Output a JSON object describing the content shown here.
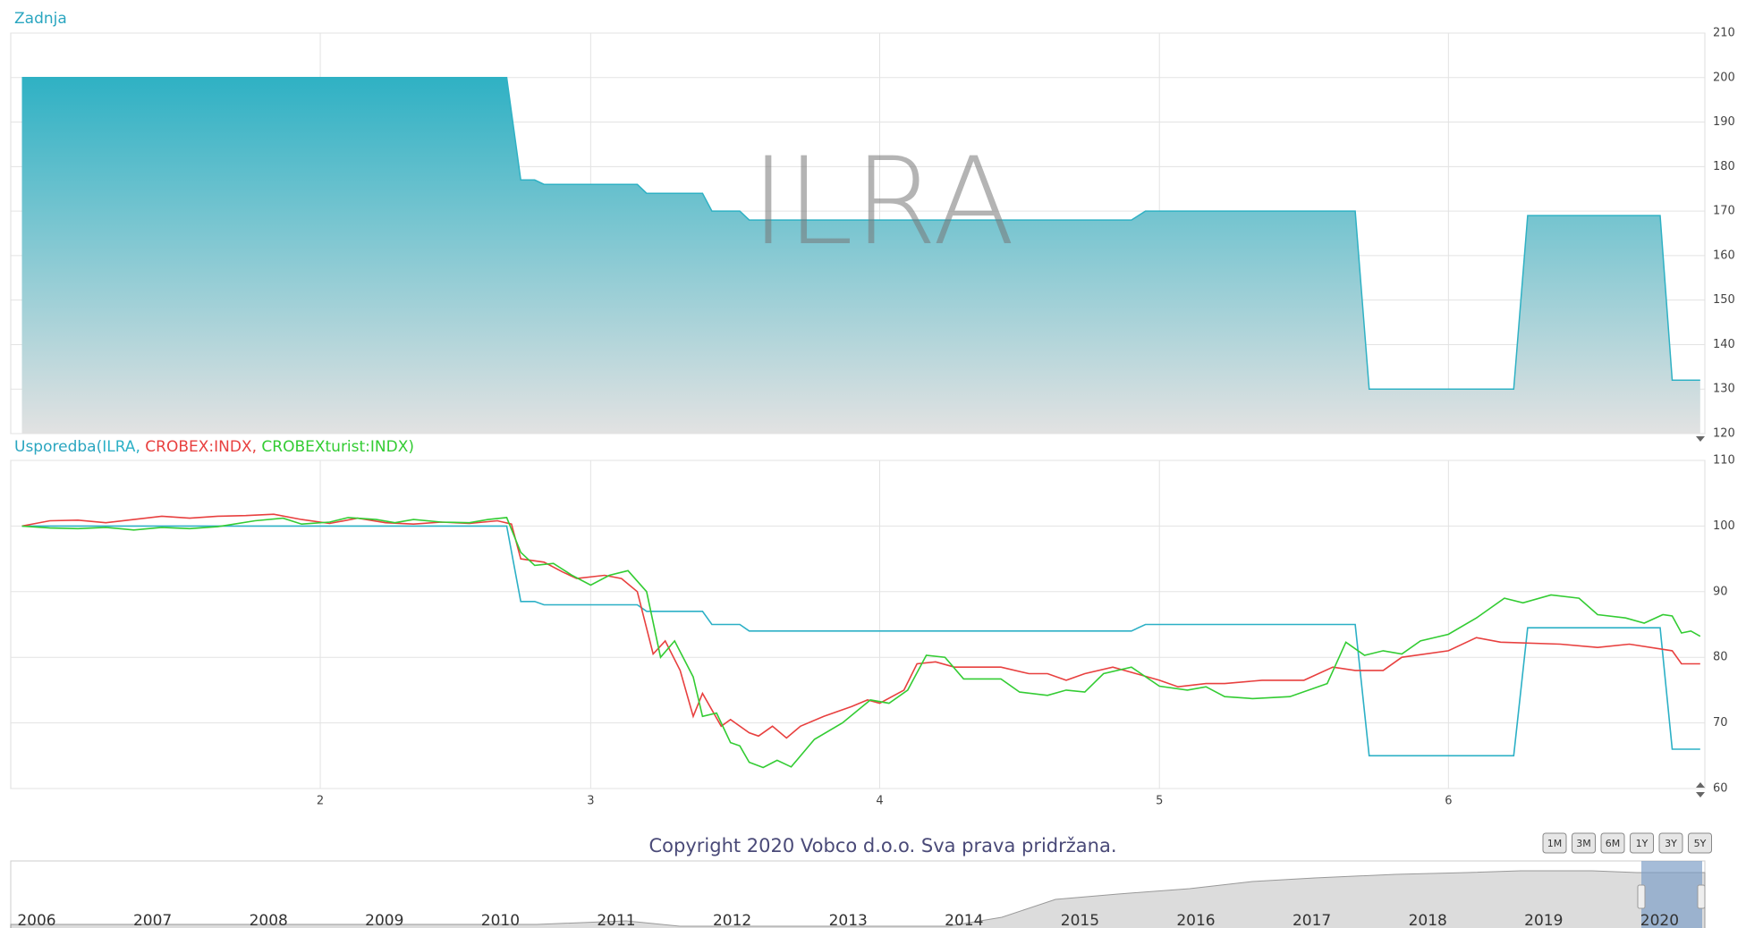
{
  "chart_data": [
    {
      "type": "area",
      "title": "Zadnja",
      "watermark": "ILRA",
      "color": "#2fb1c4",
      "x": [
        0,
        52,
        53.5,
        55,
        56,
        66,
        67,
        73,
        74,
        77,
        78,
        119,
        120.5,
        143,
        144.5,
        160,
        161.5,
        175.7,
        177,
        180
      ],
      "values": [
        200,
        200,
        177,
        177,
        176,
        176,
        174,
        174,
        170,
        170,
        168,
        168,
        170,
        170,
        130,
        130,
        169,
        169,
        132,
        132
      ],
      "xlim": [
        -1.2,
        180.5
      ],
      "xticks": [
        32,
        61,
        92,
        122,
        153
      ],
      "ylim": [
        120,
        210
      ],
      "yticks": [
        120,
        130,
        140,
        150,
        160,
        170,
        180,
        190,
        200,
        210
      ],
      "grid": true
    },
    {
      "type": "line",
      "legend_prefix": "Usporedba(",
      "legend_separator": ", ",
      "legend_suffix": ")",
      "series": [
        {
          "name": "ILRA",
          "color": "#2cb0c6",
          "x": [
            0,
            52,
            53.5,
            55,
            56,
            66,
            67,
            73,
            74,
            77,
            78,
            119,
            120.5,
            143,
            144.5,
            160,
            161.5,
            175.7,
            177,
            180
          ],
          "values": [
            100,
            100,
            88.5,
            88.5,
            88,
            88,
            87,
            87,
            85,
            85,
            84,
            84,
            85,
            85,
            65,
            65,
            84.5,
            84.5,
            66,
            66
          ]
        },
        {
          "name": "CROBEX:INDX",
          "color": "#e8403f",
          "x": [
            0,
            3,
            6,
            9,
            12,
            15,
            18,
            21,
            24,
            27,
            30,
            33,
            36,
            39,
            42,
            45,
            48,
            51,
            52.5,
            53.5,
            56,
            58,
            59.5,
            62.5,
            64.3,
            66,
            67.7,
            69,
            70.6,
            72,
            73,
            75,
            76,
            78,
            79,
            80.5,
            82,
            83.5,
            86,
            89,
            90.7,
            92,
            94.6,
            96,
            98,
            100,
            105,
            108,
            110,
            112,
            114,
            117,
            119.5,
            122,
            124,
            127,
            129,
            133,
            137.5,
            140.6,
            143,
            146,
            148,
            153,
            156,
            158.6,
            165,
            169,
            172.4,
            177,
            178,
            180
          ],
          "values": [
            100,
            100.8,
            100.9,
            100.5,
            101,
            101.5,
            101.2,
            101.5,
            101.6,
            101.8,
            101,
            100.4,
            101.2,
            100.5,
            100.3,
            100.6,
            100.4,
            100.8,
            100.3,
            95,
            94.5,
            93,
            92,
            92.5,
            92,
            90,
            80.5,
            82.5,
            78,
            71,
            74.5,
            69.5,
            70.5,
            68.5,
            68,
            69.5,
            67.7,
            69.5,
            71,
            72.5,
            73.5,
            73,
            75,
            79,
            79.3,
            78.5,
            78.5,
            77.5,
            77.5,
            76.5,
            77.5,
            78.5,
            77.5,
            76.5,
            75.5,
            76,
            76,
            76.5,
            76.5,
            78.5,
            78,
            78,
            80,
            81,
            83,
            82.3,
            82,
            81.5,
            82,
            81,
            79,
            79
          ]
        },
        {
          "name": "CROBEXturist:INDX",
          "color": "#33cc33",
          "x": [
            0,
            3,
            6,
            9,
            12,
            15,
            18,
            21,
            25,
            28,
            30,
            33,
            35,
            38,
            40,
            42,
            45,
            48,
            50,
            52,
            53.5,
            55,
            57,
            59,
            61,
            63,
            65,
            67,
            68.5,
            70,
            72,
            73,
            74.5,
            76,
            77,
            78,
            79.5,
            81,
            82.5,
            85,
            88,
            91,
            93,
            95,
            97,
            99,
            101,
            105,
            107,
            110,
            112,
            114,
            116,
            119,
            122,
            125,
            127,
            129,
            132,
            136,
            140,
            142,
            144,
            146,
            148,
            150,
            153,
            156,
            159,
            161,
            164,
            167,
            169,
            172,
            174,
            176,
            177,
            178,
            179,
            180
          ],
          "values": [
            100,
            99.7,
            99.6,
            99.8,
            99.4,
            99.8,
            99.6,
            99.9,
            100.8,
            101.2,
            100.3,
            100.6,
            101.3,
            101,
            100.5,
            101,
            100.6,
            100.5,
            101,
            101.3,
            96,
            94,
            94.3,
            92.5,
            91,
            92.5,
            93.2,
            90,
            80,
            82.5,
            77,
            71,
            71.5,
            67,
            66.5,
            64,
            63.2,
            64.3,
            63.3,
            67.5,
            70,
            73.5,
            73,
            75,
            80.3,
            80,
            76.7,
            76.7,
            74.7,
            74.2,
            75,
            74.7,
            77.5,
            78.5,
            75.6,
            75,
            75.5,
            74,
            73.7,
            74,
            76,
            82.3,
            80.3,
            81,
            80.5,
            82.5,
            83.5,
            86,
            89,
            88.3,
            89.5,
            89,
            86.5,
            86,
            85.2,
            86.5,
            86.3,
            83.7,
            84,
            83.2
          ]
        }
      ],
      "xlim": [
        -1.2,
        180.5
      ],
      "xticks": [
        {
          "value": 32,
          "label": "2"
        },
        {
          "value": 61,
          "label": "3"
        },
        {
          "value": 92,
          "label": "4"
        },
        {
          "value": 122,
          "label": "5"
        },
        {
          "value": 153,
          "label": "6"
        }
      ],
      "ylim": [
        60,
        110
      ],
      "yticks": [
        60,
        70,
        80,
        90,
        100,
        110
      ],
      "grid": true
    }
  ],
  "copyright": "Copyright 2020 Vobco d.o.o. Sva prava pridržana.",
  "range_buttons": [
    "1M",
    "3M",
    "6M",
    "1Y",
    "3Y",
    "5Y"
  ],
  "navigator_years": [
    "2006",
    "2007",
    "2008",
    "2009",
    "2010",
    "2011",
    "2012",
    "2013",
    "2014",
    "2015",
    "2016",
    "2017",
    "2018",
    "2019",
    "2020"
  ]
}
